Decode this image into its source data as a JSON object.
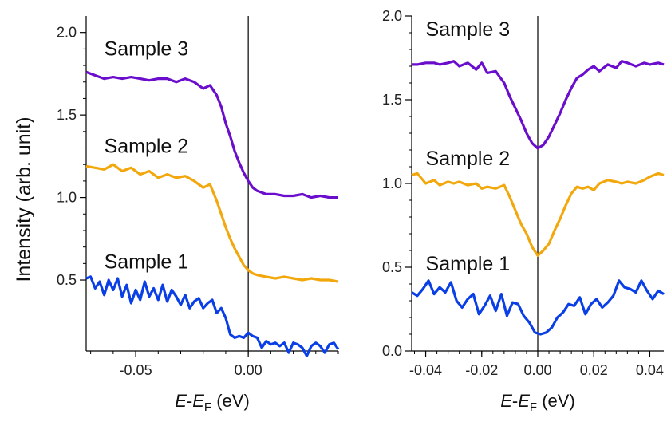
{
  "y_axis_label": "Intensity (arb. unit)",
  "chart_data": [
    {
      "type": "line",
      "xlim": [
        -0.072,
        0.04
      ],
      "ylim": [
        0.07,
        2.1
      ],
      "x_ticks": [
        -0.05,
        0.0
      ],
      "x_tick_labels": [
        "-0.05",
        "0.00"
      ],
      "y_ticks": [
        0.5,
        1.0,
        1.5,
        2.0
      ],
      "y_tick_labels": [
        "0.5",
        "1.0",
        "1.5",
        "2.0"
      ],
      "xlabel": {
        "italic_part": "E",
        "dash": "-",
        "italic_part2": "E",
        "subscript": "F",
        "unit": " (eV)"
      },
      "vertical_line_x": 0.0,
      "series": [
        {
          "name": "Sample 3",
          "color": "#6a0dcc",
          "label_x": -0.064,
          "label_y": 1.86,
          "x": [
            -0.072,
            -0.068,
            -0.064,
            -0.06,
            -0.056,
            -0.052,
            -0.048,
            -0.044,
            -0.04,
            -0.036,
            -0.032,
            -0.028,
            -0.024,
            -0.02,
            -0.017,
            -0.014,
            -0.012,
            -0.01,
            -0.008,
            -0.006,
            -0.004,
            -0.002,
            0.0,
            0.002,
            0.004,
            0.008,
            0.012,
            0.016,
            0.02,
            0.024,
            0.028,
            0.032,
            0.036,
            0.04
          ],
          "values": [
            1.76,
            1.74,
            1.72,
            1.73,
            1.72,
            1.73,
            1.72,
            1.71,
            1.72,
            1.72,
            1.7,
            1.72,
            1.7,
            1.66,
            1.68,
            1.62,
            1.55,
            1.45,
            1.37,
            1.28,
            1.21,
            1.15,
            1.1,
            1.06,
            1.04,
            1.02,
            1.02,
            1.01,
            1.01,
            1.02,
            1.0,
            1.01,
            1.0,
            1.0
          ]
        },
        {
          "name": "Sample 2",
          "color": "#f2a80c",
          "label_x": -0.064,
          "label_y": 1.27,
          "x": [
            -0.072,
            -0.068,
            -0.064,
            -0.06,
            -0.056,
            -0.052,
            -0.048,
            -0.044,
            -0.04,
            -0.036,
            -0.032,
            -0.028,
            -0.024,
            -0.02,
            -0.017,
            -0.014,
            -0.012,
            -0.01,
            -0.008,
            -0.006,
            -0.004,
            -0.002,
            0.0,
            0.002,
            0.004,
            0.008,
            0.012,
            0.016,
            0.02,
            0.024,
            0.028,
            0.032,
            0.036,
            0.04
          ],
          "values": [
            1.19,
            1.18,
            1.17,
            1.2,
            1.16,
            1.18,
            1.14,
            1.16,
            1.12,
            1.14,
            1.12,
            1.13,
            1.1,
            1.06,
            1.08,
            0.98,
            0.9,
            0.82,
            0.75,
            0.69,
            0.64,
            0.59,
            0.56,
            0.54,
            0.53,
            0.52,
            0.51,
            0.52,
            0.51,
            0.5,
            0.51,
            0.5,
            0.5,
            0.49
          ]
        },
        {
          "name": "Sample 1",
          "color": "#0a3fe6",
          "label_x": -0.064,
          "label_y": 0.57,
          "x": [
            -0.072,
            -0.07,
            -0.068,
            -0.066,
            -0.064,
            -0.062,
            -0.06,
            -0.058,
            -0.056,
            -0.054,
            -0.052,
            -0.05,
            -0.048,
            -0.046,
            -0.044,
            -0.042,
            -0.04,
            -0.038,
            -0.036,
            -0.034,
            -0.032,
            -0.03,
            -0.028,
            -0.026,
            -0.024,
            -0.022,
            -0.02,
            -0.018,
            -0.016,
            -0.014,
            -0.012,
            -0.01,
            -0.008,
            -0.006,
            -0.004,
            -0.002,
            0.0,
            0.002,
            0.004,
            0.006,
            0.008,
            0.01,
            0.012,
            0.014,
            0.016,
            0.018,
            0.02,
            0.022,
            0.024,
            0.026,
            0.028,
            0.03,
            0.032,
            0.034,
            0.036,
            0.038,
            0.04
          ],
          "values": [
            0.51,
            0.52,
            0.45,
            0.49,
            0.41,
            0.5,
            0.44,
            0.51,
            0.4,
            0.47,
            0.36,
            0.44,
            0.38,
            0.49,
            0.4,
            0.45,
            0.38,
            0.47,
            0.37,
            0.44,
            0.4,
            0.35,
            0.41,
            0.33,
            0.37,
            0.39,
            0.33,
            0.36,
            0.38,
            0.3,
            0.33,
            0.27,
            0.17,
            0.15,
            0.16,
            0.15,
            0.18,
            0.16,
            0.15,
            0.09,
            0.13,
            0.11,
            0.12,
            0.1,
            0.12,
            0.06,
            0.12,
            0.11,
            0.09,
            0.04,
            0.1,
            0.12,
            0.1,
            0.06,
            0.11,
            0.12,
            0.08
          ]
        }
      ]
    },
    {
      "type": "line",
      "xlim": [
        -0.045,
        0.045
      ],
      "ylim": [
        0.0,
        2.0
      ],
      "x_ticks": [
        -0.04,
        -0.02,
        0.0,
        0.02,
        0.04
      ],
      "x_tick_labels": [
        "-0.04",
        "-0.02",
        "0.00",
        "0.02",
        "0.04"
      ],
      "y_ticks": [
        0.0,
        0.5,
        1.0,
        1.5,
        2.0
      ],
      "y_tick_labels": [
        "0.0",
        "0.5",
        "1.0",
        "1.5",
        "2.0"
      ],
      "xlabel": {
        "italic_part": "E",
        "dash": "-",
        "italic_part2": "E",
        "subscript": "F",
        "unit": " (eV)"
      },
      "vertical_line_x": 0.0,
      "series": [
        {
          "name": "Sample 3",
          "color": "#6a0dcc",
          "label_x": -0.04,
          "label_y": 1.88,
          "x": [
            -0.045,
            -0.043,
            -0.04,
            -0.037,
            -0.035,
            -0.032,
            -0.03,
            -0.028,
            -0.025,
            -0.022,
            -0.02,
            -0.018,
            -0.015,
            -0.012,
            -0.01,
            -0.008,
            -0.006,
            -0.004,
            -0.002,
            0.0,
            0.002,
            0.004,
            0.006,
            0.008,
            0.01,
            0.012,
            0.014,
            0.016,
            0.018,
            0.02,
            0.022,
            0.025,
            0.028,
            0.03,
            0.032,
            0.035,
            0.038,
            0.04,
            0.043,
            0.045
          ],
          "values": [
            1.71,
            1.71,
            1.72,
            1.72,
            1.71,
            1.72,
            1.73,
            1.7,
            1.72,
            1.68,
            1.72,
            1.66,
            1.67,
            1.6,
            1.52,
            1.45,
            1.38,
            1.3,
            1.24,
            1.21,
            1.23,
            1.28,
            1.35,
            1.42,
            1.5,
            1.57,
            1.63,
            1.65,
            1.68,
            1.7,
            1.67,
            1.71,
            1.69,
            1.73,
            1.72,
            1.7,
            1.72,
            1.71,
            1.72,
            1.71
          ]
        },
        {
          "name": "Sample 2",
          "color": "#f2a80c",
          "label_x": -0.04,
          "label_y": 1.11,
          "x": [
            -0.045,
            -0.043,
            -0.04,
            -0.037,
            -0.035,
            -0.032,
            -0.03,
            -0.028,
            -0.025,
            -0.022,
            -0.02,
            -0.018,
            -0.015,
            -0.012,
            -0.01,
            -0.008,
            -0.006,
            -0.004,
            -0.002,
            0.0,
            0.002,
            0.004,
            0.006,
            0.008,
            0.01,
            0.012,
            0.014,
            0.016,
            0.018,
            0.02,
            0.022,
            0.025,
            0.028,
            0.03,
            0.032,
            0.035,
            0.038,
            0.04,
            0.043,
            0.045
          ],
          "values": [
            1.05,
            1.06,
            1.0,
            1.02,
            0.99,
            1.01,
            1.0,
            1.01,
            0.99,
            1.0,
            0.97,
            0.98,
            0.97,
            0.99,
            0.92,
            0.84,
            0.76,
            0.7,
            0.62,
            0.57,
            0.6,
            0.64,
            0.72,
            0.79,
            0.87,
            0.94,
            0.98,
            0.97,
            0.98,
            0.96,
            1.0,
            1.02,
            1.01,
            1.0,
            1.01,
            1.0,
            1.02,
            1.04,
            1.06,
            1.05
          ]
        },
        {
          "name": "Sample 1",
          "color": "#0a3fe6",
          "label_x": -0.04,
          "label_y": 0.48,
          "x": [
            -0.045,
            -0.043,
            -0.041,
            -0.039,
            -0.037,
            -0.035,
            -0.033,
            -0.031,
            -0.029,
            -0.027,
            -0.025,
            -0.023,
            -0.021,
            -0.019,
            -0.017,
            -0.015,
            -0.013,
            -0.011,
            -0.009,
            -0.007,
            -0.005,
            -0.003,
            -0.001,
            0.001,
            0.003,
            0.005,
            0.007,
            0.009,
            0.011,
            0.013,
            0.015,
            0.017,
            0.019,
            0.021,
            0.023,
            0.025,
            0.027,
            0.029,
            0.031,
            0.033,
            0.035,
            0.037,
            0.039,
            0.041,
            0.043,
            0.045
          ],
          "values": [
            0.35,
            0.33,
            0.37,
            0.42,
            0.34,
            0.38,
            0.35,
            0.41,
            0.3,
            0.26,
            0.31,
            0.34,
            0.22,
            0.27,
            0.33,
            0.24,
            0.34,
            0.21,
            0.29,
            0.28,
            0.21,
            0.17,
            0.11,
            0.1,
            0.11,
            0.14,
            0.2,
            0.23,
            0.28,
            0.27,
            0.32,
            0.22,
            0.28,
            0.31,
            0.26,
            0.29,
            0.33,
            0.42,
            0.38,
            0.37,
            0.35,
            0.42,
            0.36,
            0.31,
            0.36,
            0.34
          ]
        }
      ]
    }
  ]
}
